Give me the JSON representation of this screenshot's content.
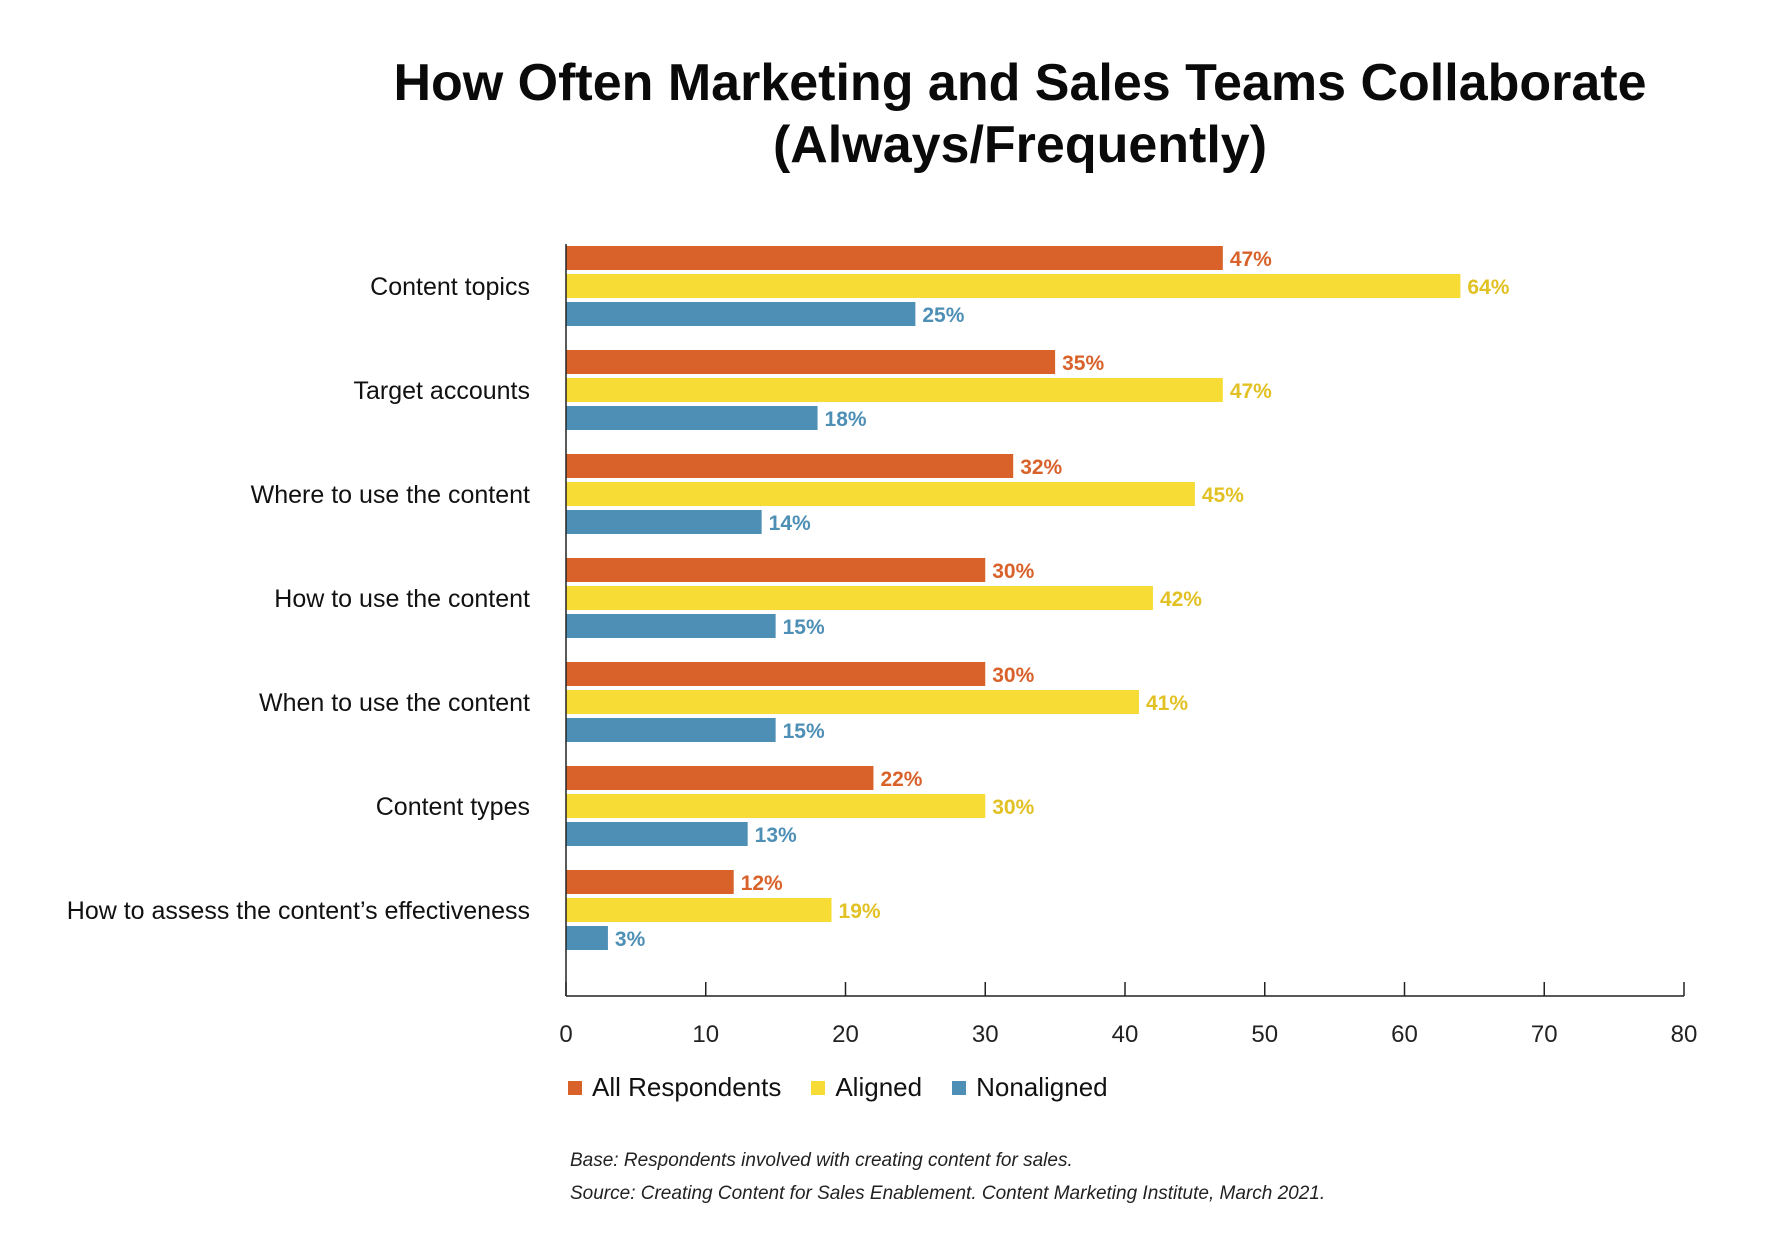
{
  "chart_data": {
    "type": "bar",
    "orientation": "horizontal",
    "title_lines": [
      "How Often Marketing and Sales Teams Collaborate",
      "(Always/Frequently)"
    ],
    "categories": [
      "Content topics",
      "Target accounts",
      "Where to use the content",
      "How to use the content",
      "When to use the content",
      "Content types",
      "How to assess the content’s effectiveness"
    ],
    "series": [
      {
        "name": "All Respondents",
        "color": "#d9622b",
        "values": [
          47,
          35,
          32,
          30,
          30,
          22,
          12
        ],
        "labels": [
          "47%",
          "35%",
          "32%",
          "30%",
          "30%",
          "22%",
          "12%"
        ]
      },
      {
        "name": "Aligned",
        "color": "#f6dc35",
        "label_color": "#e2c124",
        "values": [
          64,
          47,
          45,
          42,
          41,
          30,
          19
        ],
        "labels": [
          "64%",
          "47%",
          "45%",
          "42%",
          "41%",
          "30%",
          "19%"
        ]
      },
      {
        "name": "Nonaligned",
        "color": "#4e8fb5",
        "values": [
          25,
          18,
          14,
          15,
          15,
          13,
          3
        ],
        "labels": [
          "25%",
          "18%",
          "14%",
          "15%",
          "15%",
          "13%",
          "3%"
        ]
      }
    ],
    "xlim": [
      0,
      80
    ],
    "xticks": [
      0,
      10,
      20,
      30,
      40,
      50,
      60,
      70,
      80
    ],
    "xtick_labels": [
      "0",
      "10",
      "20",
      "30",
      "40",
      "50",
      "60",
      "70",
      "80"
    ],
    "xlabel": "",
    "ylabel": "",
    "grid": false,
    "legend_position": "bottom-left"
  },
  "footnotes": {
    "base": "Base: Respondents involved with creating content for sales.",
    "source": "Source: Creating Content for Sales Enablement. Content Marketing Institute, March 2021."
  }
}
